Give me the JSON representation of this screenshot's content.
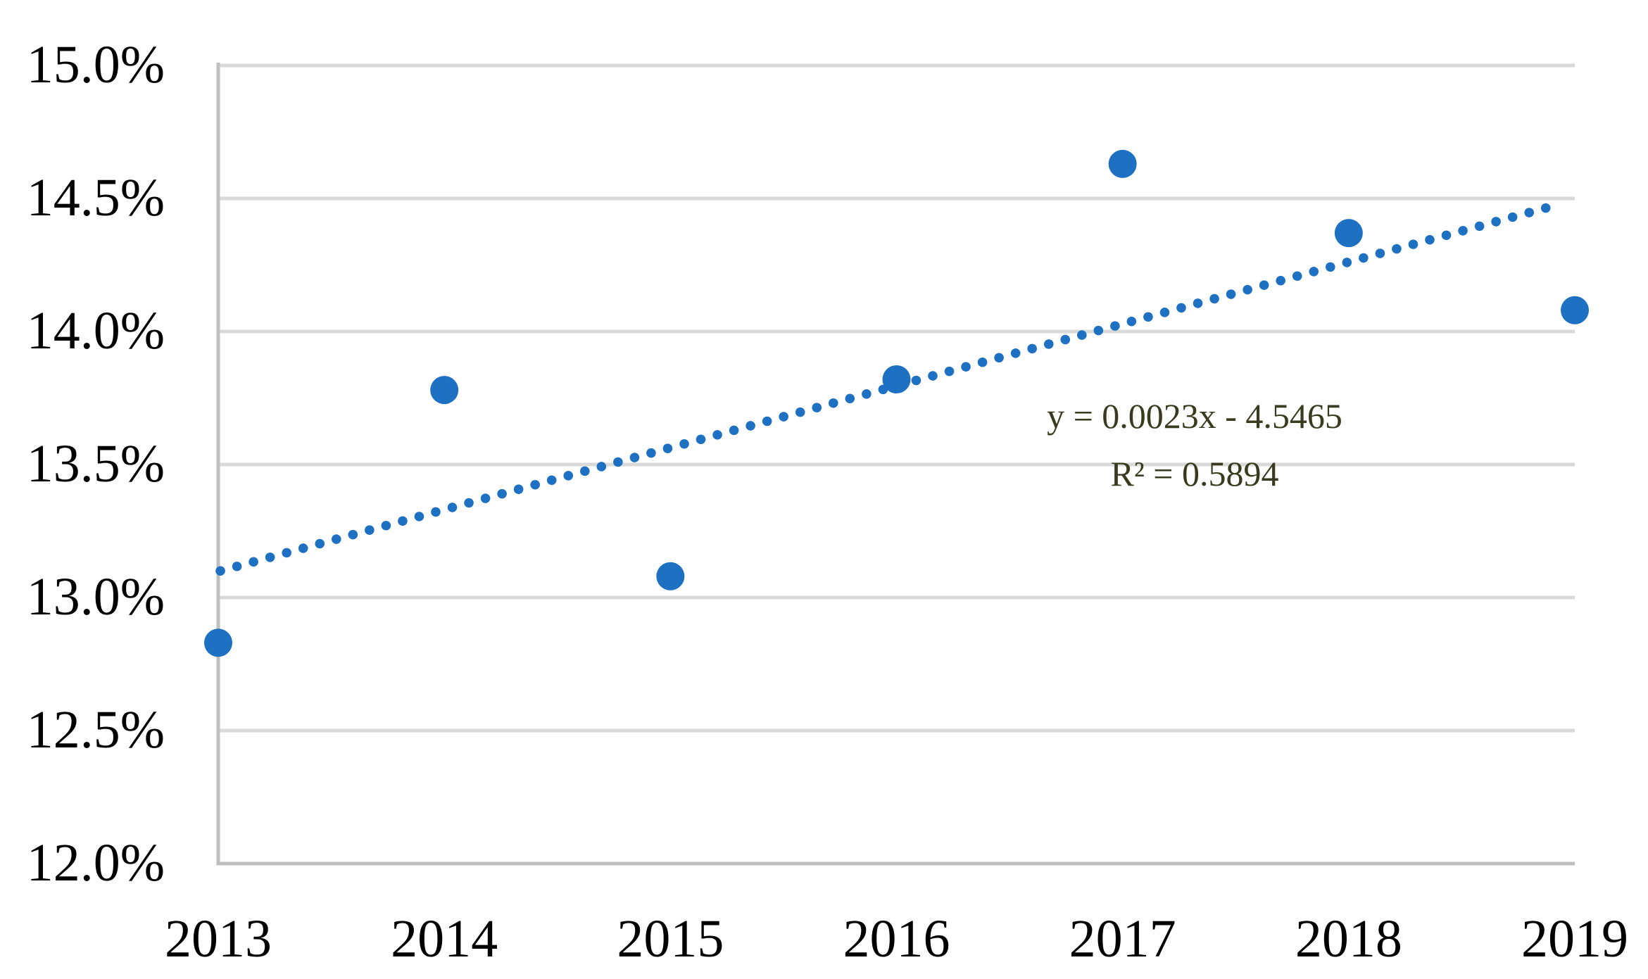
{
  "chart_data": {
    "type": "scatter",
    "title": "",
    "xlabel": "",
    "ylabel": "",
    "xlim": [
      2013,
      2019
    ],
    "ylim_pct": [
      12.0,
      15.0
    ],
    "grid": "horizontal",
    "legend": "none",
    "x": [
      2013,
      2014,
      2015,
      2016,
      2017,
      2018,
      2019
    ],
    "y_pct": [
      12.83,
      13.78,
      13.08,
      13.82,
      14.63,
      14.37,
      14.08
    ],
    "x_axis": {
      "tick_labels": [
        "2013",
        "2014",
        "2015",
        "2016",
        "2017",
        "2018",
        "2019"
      ]
    },
    "y_axis": {
      "min_pct": 12.0,
      "max_pct": 15.0,
      "step_pct": 0.5,
      "tick_labels": [
        "15.0%",
        "14.5%",
        "14.0%",
        "13.5%",
        "13.0%",
        "12.5%",
        "12.0%"
      ]
    },
    "trendline": {
      "type": "linear",
      "style": "dotted",
      "equation": "y = 0.0023x - 4.5465",
      "r2_label": "R² = 0.5894",
      "x1": 2013.0,
      "y1_pct": 13.1,
      "x2": 2018.94,
      "y2_pct": 14.48
    },
    "colors": {
      "point": "#1E71C2",
      "trend": "#1E71C2",
      "gridline": "#D9D9D9",
      "axis": "#BFBFBF",
      "equation_text": "#3A3A1E",
      "tick_text": "#000000"
    }
  }
}
